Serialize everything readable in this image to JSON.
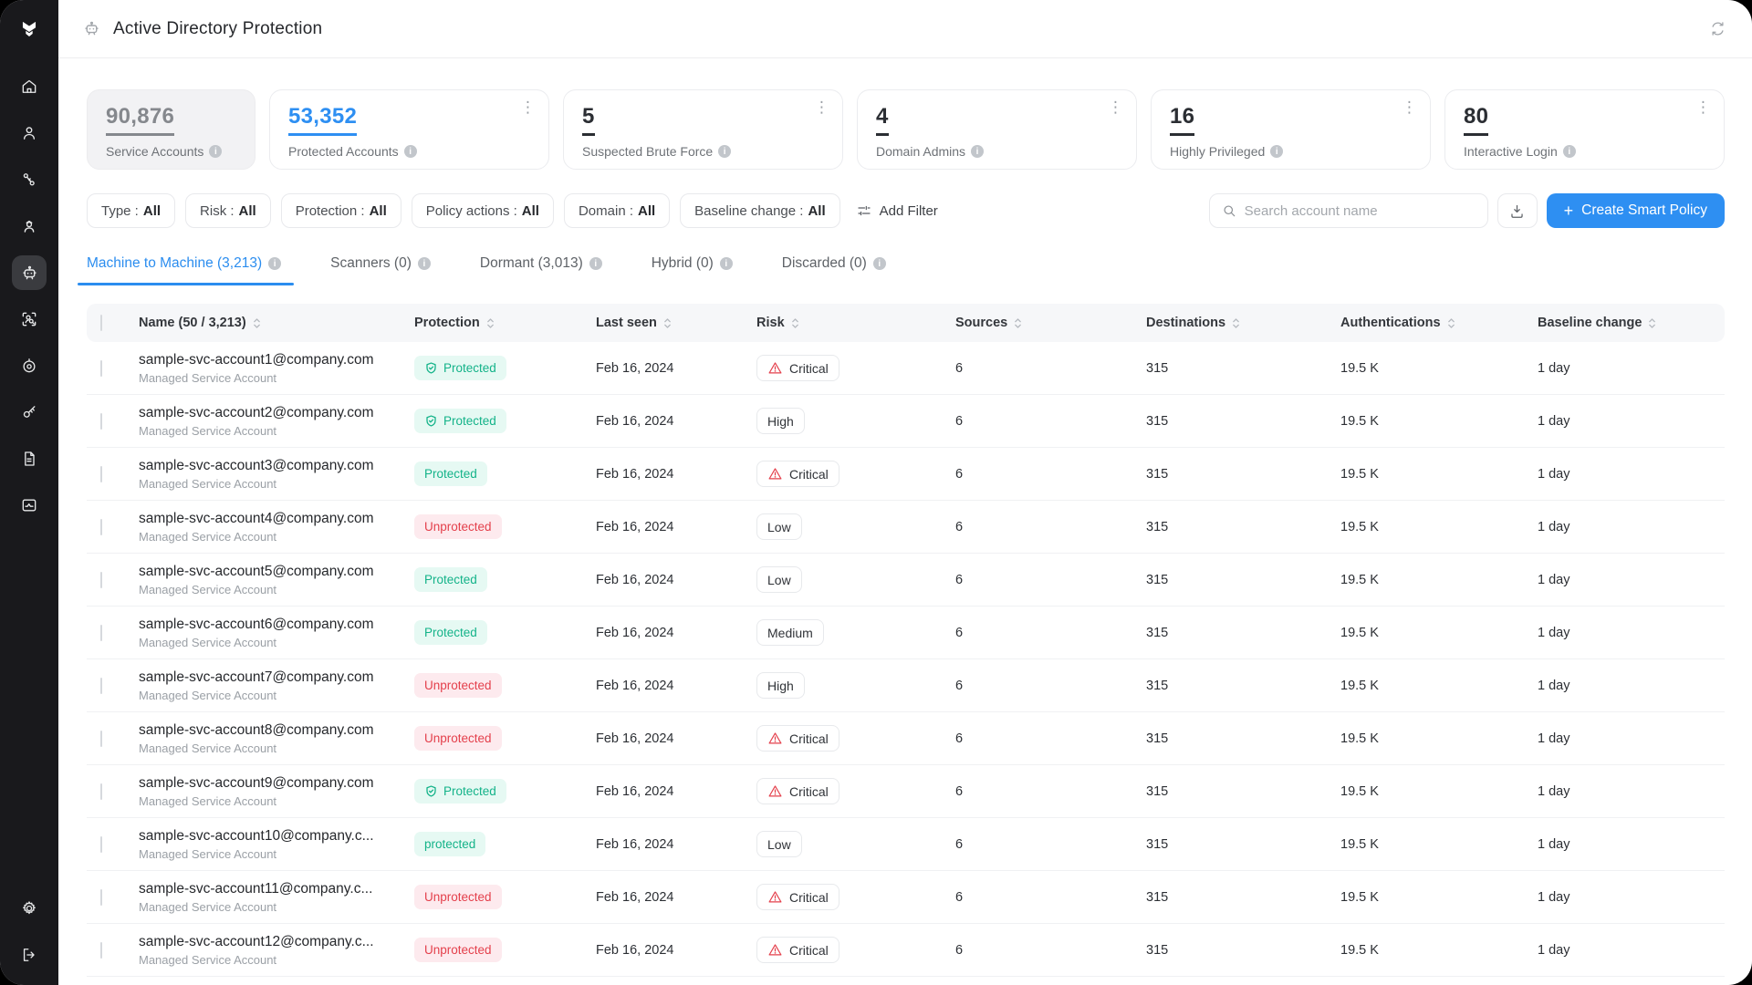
{
  "header": {
    "title": "Active Directory Protection"
  },
  "sidebar": {
    "items": [
      {
        "name": "home",
        "icon": "home-icon",
        "active": false
      },
      {
        "name": "users",
        "icon": "user-icon",
        "active": false
      },
      {
        "name": "credentials",
        "icon": "keys-icon",
        "active": false
      },
      {
        "name": "privileged-user",
        "icon": "admin-user-icon",
        "active": false
      },
      {
        "name": "service-accounts",
        "icon": "robot-icon",
        "active": true
      },
      {
        "name": "user-discovery",
        "icon": "user-scan-icon",
        "active": false
      },
      {
        "name": "radar",
        "icon": "radar-icon",
        "active": false
      },
      {
        "name": "access-key",
        "icon": "key-icon",
        "active": false
      },
      {
        "name": "reports",
        "icon": "document-icon",
        "active": false
      },
      {
        "name": "policies",
        "icon": "sliders-icon",
        "active": false
      }
    ],
    "bottom_items": [
      {
        "name": "settings",
        "icon": "gear-icon"
      },
      {
        "name": "logout",
        "icon": "logout-icon"
      }
    ]
  },
  "stats": [
    {
      "value": "90,876",
      "label": "Service Accounts",
      "variant": "muted",
      "kebab": false
    },
    {
      "value": "53,352",
      "label": "Protected Accounts",
      "variant": "link",
      "kebab": true
    },
    {
      "value": "5",
      "label": "Suspected Brute Force",
      "variant": "dark",
      "kebab": true
    },
    {
      "value": "4",
      "label": "Domain Admins",
      "variant": "dark",
      "kebab": true
    },
    {
      "value": "16",
      "label": "Highly Privileged",
      "variant": "dark",
      "kebab": true
    },
    {
      "value": "80",
      "label": "Interactive Login",
      "variant": "dark",
      "kebab": true
    }
  ],
  "filters": {
    "chips": [
      {
        "label": "Type",
        "value": "All"
      },
      {
        "label": "Risk",
        "value": "All"
      },
      {
        "label": "Protection",
        "value": "All"
      },
      {
        "label": "Policy actions",
        "value": "All"
      },
      {
        "label": "Domain",
        "value": "All"
      },
      {
        "label": "Baseline change",
        "value": "All"
      }
    ],
    "add_filter_label": "Add Filter"
  },
  "toolbar": {
    "search_placeholder": "Search account name",
    "create_policy_label": "Create Smart Policy",
    "plus": "+"
  },
  "tabs": [
    {
      "label": "Machine to Machine (3,213)",
      "active": true
    },
    {
      "label": "Scanners (0)",
      "active": false
    },
    {
      "label": "Dormant (3,013)",
      "active": false
    },
    {
      "label": "Hybrid (0)",
      "active": false
    },
    {
      "label": "Discarded (0)",
      "active": false
    }
  ],
  "table": {
    "headers": [
      "Name (50 / 3,213)",
      "Protection",
      "Last seen",
      "Risk",
      "Sources",
      "Destinations",
      "Authentications",
      "Baseline change"
    ],
    "rows": [
      {
        "name": "sample-svc-account1@company.com",
        "subtitle": "Managed Service Account",
        "protection": {
          "label": "Protected",
          "state": "protected",
          "icon": true
        },
        "last_seen": "Feb 16, 2024",
        "risk": {
          "label": "Critical",
          "icon": true
        },
        "sources": "6",
        "destinations": "315",
        "authentications": "19.5 K",
        "baseline_change": "1 day"
      },
      {
        "name": "sample-svc-account2@company.com",
        "subtitle": "Managed Service Account",
        "protection": {
          "label": "Protected",
          "state": "protected",
          "icon": true
        },
        "last_seen": "Feb 16, 2024",
        "risk": {
          "label": "High",
          "icon": false
        },
        "sources": "6",
        "destinations": "315",
        "authentications": "19.5 K",
        "baseline_change": "1 day"
      },
      {
        "name": "sample-svc-account3@company.com",
        "subtitle": "Managed Service Account",
        "protection": {
          "label": "Protected",
          "state": "protected",
          "icon": false
        },
        "last_seen": "Feb 16, 2024",
        "risk": {
          "label": "Critical",
          "icon": true
        },
        "sources": "6",
        "destinations": "315",
        "authentications": "19.5 K",
        "baseline_change": "1 day"
      },
      {
        "name": "sample-svc-account4@company.com",
        "subtitle": "Managed Service Account",
        "protection": {
          "label": "Unprotected",
          "state": "unprotected",
          "icon": false
        },
        "last_seen": "Feb 16, 2024",
        "risk": {
          "label": "Low",
          "icon": false
        },
        "sources": "6",
        "destinations": "315",
        "authentications": "19.5 K",
        "baseline_change": "1 day"
      },
      {
        "name": "sample-svc-account5@company.com",
        "subtitle": "Managed Service Account",
        "protection": {
          "label": "Protected",
          "state": "protected",
          "icon": false
        },
        "last_seen": "Feb 16, 2024",
        "risk": {
          "label": "Low",
          "icon": false
        },
        "sources": "6",
        "destinations": "315",
        "authentications": "19.5 K",
        "baseline_change": "1 day"
      },
      {
        "name": "sample-svc-account6@company.com",
        "subtitle": "Managed Service Account",
        "protection": {
          "label": "Protected",
          "state": "protected",
          "icon": false
        },
        "last_seen": "Feb 16, 2024",
        "risk": {
          "label": "Medium",
          "icon": false
        },
        "sources": "6",
        "destinations": "315",
        "authentications": "19.5 K",
        "baseline_change": "1 day"
      },
      {
        "name": "sample-svc-account7@company.com",
        "subtitle": "Managed Service Account",
        "protection": {
          "label": "Unprotected",
          "state": "unprotected",
          "icon": false
        },
        "last_seen": "Feb 16, 2024",
        "risk": {
          "label": "High",
          "icon": false
        },
        "sources": "6",
        "destinations": "315",
        "authentications": "19.5 K",
        "baseline_change": "1 day"
      },
      {
        "name": "sample-svc-account8@company.com",
        "subtitle": "Managed Service Account",
        "protection": {
          "label": "Unprotected",
          "state": "unprotected",
          "icon": false
        },
        "last_seen": "Feb 16, 2024",
        "risk": {
          "label": "Critical",
          "icon": true
        },
        "sources": "6",
        "destinations": "315",
        "authentications": "19.5 K",
        "baseline_change": "1 day"
      },
      {
        "name": "sample-svc-account9@company.com",
        "subtitle": "Managed Service Account",
        "protection": {
          "label": "Protected",
          "state": "protected",
          "icon": true
        },
        "last_seen": "Feb 16, 2024",
        "risk": {
          "label": "Critical",
          "icon": true
        },
        "sources": "6",
        "destinations": "315",
        "authentications": "19.5 K",
        "baseline_change": "1 day"
      },
      {
        "name": "sample-svc-account10@company.c...",
        "subtitle": "Managed Service Account",
        "protection": {
          "label": "protected",
          "state": "protected",
          "icon": false
        },
        "last_seen": "Feb 16, 2024",
        "risk": {
          "label": "Low",
          "icon": false
        },
        "sources": "6",
        "destinations": "315",
        "authentications": "19.5 K",
        "baseline_change": "1 day"
      },
      {
        "name": "sample-svc-account11@company.c...",
        "subtitle": "Managed Service Account",
        "protection": {
          "label": "Unprotected",
          "state": "unprotected",
          "icon": false
        },
        "last_seen": "Feb 16, 2024",
        "risk": {
          "label": "Critical",
          "icon": true
        },
        "sources": "6",
        "destinations": "315",
        "authentications": "19.5 K",
        "baseline_change": "1 day"
      },
      {
        "name": "sample-svc-account12@company.c...",
        "subtitle": "Managed Service Account",
        "protection": {
          "label": "Unprotected",
          "state": "unprotected",
          "icon": false
        },
        "last_seen": "Feb 16, 2024",
        "risk": {
          "label": "Critical",
          "icon": true
        },
        "sources": "6",
        "destinations": "315",
        "authentications": "19.5 K",
        "baseline_change": "1 day"
      }
    ]
  },
  "colors": {
    "accent_blue": "#2e8ff2",
    "protected_green": "#14b389",
    "protected_bg": "#e6f9f3",
    "unprotected_red": "#e4404c",
    "unprotected_bg": "#fdeaee",
    "sidebar_bg": "#19191c",
    "card_muted_bg": "#f2f2f4",
    "table_header_bg": "#f6f7f9"
  }
}
